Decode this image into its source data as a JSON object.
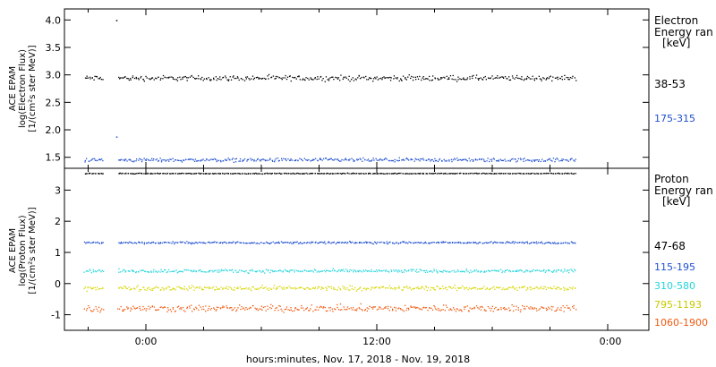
{
  "chart_data": [
    {
      "type": "scatter",
      "ylabel": [
        "ACE EPAM",
        "log(Electron Flux)",
        "[1/(cm²s ster MeV)]"
      ],
      "ylim": [
        1.3,
        4.2
      ],
      "yticks": [
        "1.5",
        "2.0",
        "2.5",
        "3.0",
        "3.5",
        "4.0"
      ],
      "grid": false,
      "legend": {
        "placement": "right",
        "title": [
          "Electron",
          "Energy ran",
          "[keV]"
        ],
        "entries": [
          "38-53",
          "175-315"
        ]
      },
      "series": [
        {
          "name": "38-53",
          "color": "#000000",
          "level": 2.95,
          "spread": 0.07,
          "gap_spike": 4.0
        },
        {
          "name": "175-315",
          "color": "#1f4fd0",
          "level": 1.46,
          "spread": 0.05,
          "gap_spike": 1.88
        }
      ]
    },
    {
      "type": "scatter",
      "ylabel": [
        "ACE EPAM",
        "log(Proton Flux)",
        "[1/(cm²s ster MeV)]"
      ],
      "ylim": [
        -1.5,
        3.7
      ],
      "yticks": [
        "-1",
        "0",
        "1",
        "2",
        "3"
      ],
      "grid": false,
      "legend": {
        "placement": "right",
        "title": [
          "Proton",
          "Energy ran",
          "[keV]"
        ],
        "entries": [
          "47-68",
          "115-195",
          "310-580",
          "795-1193",
          "1060-1900"
        ]
      },
      "series": [
        {
          "name": "47-68",
          "color": "#000000",
          "level": 3.55,
          "spread": 0.02
        },
        {
          "name": "115-195",
          "color": "#1f4fd0",
          "level": 1.33,
          "spread": 0.05
        },
        {
          "name": "310-580",
          "color": "#22d4dc",
          "level": 0.42,
          "spread": 0.08
        },
        {
          "name": "795-1193",
          "color": "#d6d600",
          "level": -0.13,
          "spread": 0.11
        },
        {
          "name": "1060-1900",
          "color": "#f05a10",
          "level": -0.78,
          "spread": 0.16
        }
      ]
    }
  ],
  "x_axis": {
    "title": "hours:minutes, Nov. 17, 2018 - Nov. 19, 2018",
    "ticks": [
      "0:00",
      "12:00",
      "0:00"
    ],
    "data_hours_start": -3.2,
    "data_hours_end": 22.3,
    "data_gap_hours": [
      -2.2,
      -1.5
    ]
  }
}
